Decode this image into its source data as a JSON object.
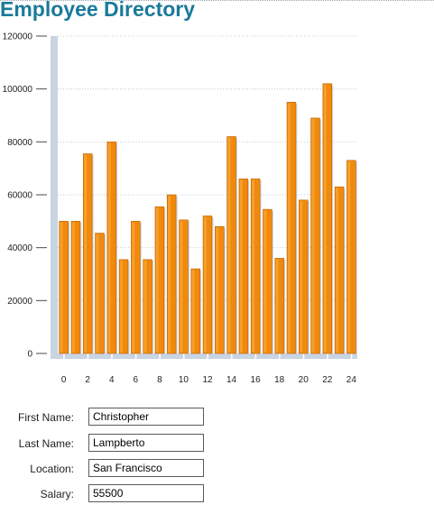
{
  "header": {
    "title": "Employee Directory"
  },
  "chart_data": {
    "type": "bar",
    "title": "",
    "xlabel": "",
    "ylabel": "",
    "ylim": [
      0,
      120000
    ],
    "yticks": [
      0,
      20000,
      40000,
      60000,
      80000,
      100000,
      120000
    ],
    "xticks": [
      0,
      2,
      4,
      6,
      8,
      10,
      12,
      14,
      16,
      18,
      20,
      22,
      24
    ],
    "categories": [
      0,
      1,
      2,
      3,
      4,
      5,
      6,
      7,
      8,
      9,
      10,
      11,
      12,
      13,
      14,
      15,
      16,
      17,
      18,
      19,
      20,
      21,
      22,
      23,
      24
    ],
    "values": [
      50000,
      50000,
      75500,
      45500,
      80000,
      35500,
      50000,
      35500,
      55500,
      60000,
      50500,
      32000,
      52000,
      48000,
      82000,
      66000,
      66000,
      54500,
      36000,
      95000,
      58000,
      89000,
      102000,
      63000,
      73000
    ],
    "grid": true,
    "colors": {
      "bar": "#ef8a0c",
      "bar_dark": "#b8630a",
      "bar_light": "#ffb347",
      "axis": "#c9d4e2"
    }
  },
  "form": {
    "first_name": {
      "label": "First Name:",
      "value": "Christopher"
    },
    "last_name": {
      "label": "Last Name:",
      "value": "Lampberto"
    },
    "location": {
      "label": "Location:",
      "value": "San Francisco"
    },
    "salary": {
      "label": "Salary:",
      "value": "55500"
    }
  }
}
